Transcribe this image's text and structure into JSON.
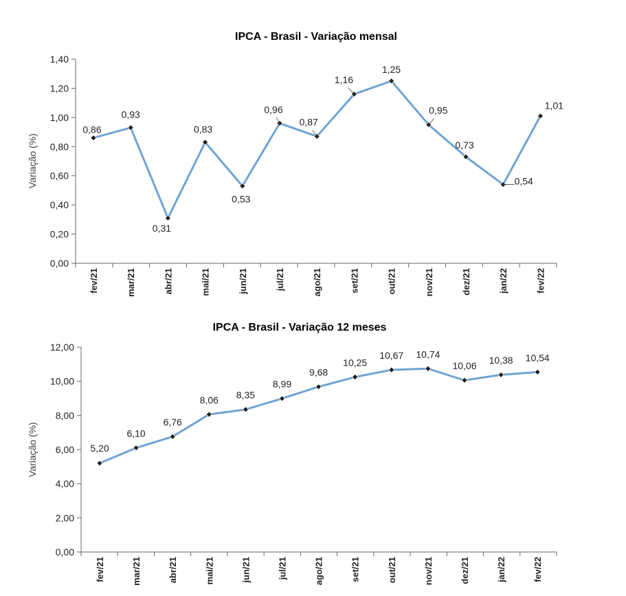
{
  "chart_data": [
    {
      "type": "line",
      "title": "IPCA - Brasil - Variação mensal",
      "ylabel": "Variação (%)",
      "xlabel": "",
      "categories": [
        "fev/21",
        "mar/21",
        "abr/21",
        "mai/21",
        "jun/21",
        "jul/21",
        "ago/21",
        "set/21",
        "out/21",
        "nov/21",
        "dez/21",
        "jan/22",
        "fev/22"
      ],
      "series": [
        {
          "values": [
            0.86,
            0.93,
            0.31,
            0.83,
            0.53,
            0.96,
            0.87,
            1.16,
            1.25,
            0.95,
            0.73,
            0.54,
            1.01
          ],
          "labels": [
            "0,86",
            "0,93",
            "0,31",
            "0,83",
            "0,53",
            "0,96",
            "0,87",
            "1,16",
            "1,25",
            "0,95",
            "0,73",
            "0,54",
            "1,01"
          ]
        }
      ],
      "ylim": [
        0,
        1.4
      ],
      "yticks": [
        "0,00",
        "0,20",
        "0,40",
        "0,60",
        "0,80",
        "1,00",
        "1,20",
        "1,40"
      ],
      "grid": false,
      "color": "#6fa3d4"
    },
    {
      "type": "line",
      "title": "IPCA - Brasil - Variação 12 meses",
      "ylabel": "Variação (%)",
      "xlabel": "",
      "categories": [
        "fev/21",
        "mar/21",
        "abr/21",
        "mai/21",
        "jun/21",
        "jul/21",
        "ago/21",
        "set/21",
        "out/21",
        "nov/21",
        "dez/21",
        "jan/22",
        "fev/22"
      ],
      "series": [
        {
          "values": [
            5.2,
            6.1,
            6.76,
            8.06,
            8.35,
            8.99,
            9.68,
            10.25,
            10.67,
            10.74,
            10.06,
            10.38,
            10.54
          ],
          "labels": [
            "5,20",
            "6,10",
            "6,76",
            "8,06",
            "8,35",
            "8,99",
            "9,68",
            "10,25",
            "10,67",
            "10,74",
            "10,06",
            "10,38",
            "10,54"
          ]
        }
      ],
      "ylim": [
        0,
        12
      ],
      "yticks": [
        "0,00",
        "2,00",
        "4,00",
        "6,00",
        "8,00",
        "10,00",
        "12,00"
      ],
      "grid": false,
      "color": "#6fa3d4"
    }
  ]
}
